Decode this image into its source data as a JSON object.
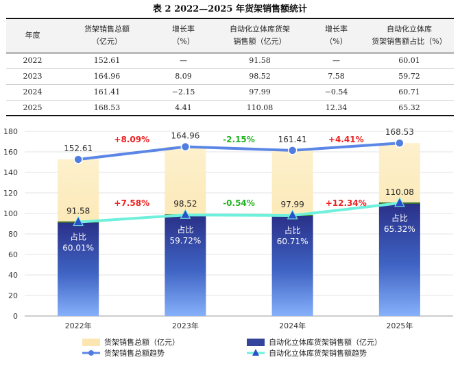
{
  "table": {
    "title": "表 2 2022—2025 年货架销售额统计",
    "headers": [
      [
        "年度"
      ],
      [
        "货架销售总额",
        "（亿元）"
      ],
      [
        "增长率",
        "（%）"
      ],
      [
        "自动化立体库货架",
        "销售额（亿元）"
      ],
      [
        "增长率",
        "（%）"
      ],
      [
        "自动化立体库",
        "货架销售额占比（%）"
      ]
    ],
    "rows": [
      [
        "2022",
        "152.61",
        "—",
        "91.58",
        "—",
        "60.01"
      ],
      [
        "2023",
        "164.96",
        "8.09",
        "98.52",
        "7.58",
        "59.72"
      ],
      [
        "2024",
        "161.41",
        "−2.15",
        "97.99",
        "−0.54",
        "60.71"
      ],
      [
        "2025",
        "168.53",
        "4.41",
        "110.08",
        "12.34",
        "65.32"
      ]
    ]
  },
  "chart_data": {
    "type": "bar",
    "categories": [
      "2022年",
      "2023年",
      "2024年",
      "2025年"
    ],
    "ylim": [
      0,
      180
    ],
    "yticks": [
      0,
      20,
      40,
      60,
      80,
      100,
      120,
      140,
      160,
      180
    ],
    "series": [
      {
        "name": "货架销售总额（亿元）",
        "kind": "bar",
        "values": [
          152.61,
          164.96,
          161.41,
          168.53
        ],
        "labels": [
          "152.61",
          "164.96",
          "161.41",
          "168.53"
        ],
        "color": "#fbe6b2"
      },
      {
        "name": "自动化立体库货架销售额（亿元）",
        "kind": "bar",
        "values": [
          91.58,
          98.52,
          97.99,
          110.08
        ],
        "labels": [
          "91.58",
          "98.52",
          "97.99",
          "110.08"
        ],
        "color": "#33449a"
      },
      {
        "name": "货架销售总额趋势",
        "kind": "line",
        "values": [
          152.61,
          164.96,
          161.41,
          168.53
        ],
        "color": "#5b86e5"
      },
      {
        "name": "自动化立体库货架销售额趋势",
        "kind": "line",
        "values": [
          91.58,
          98.52,
          97.99,
          110.08
        ],
        "color": "#6ff0dc"
      }
    ],
    "share_labels": [
      {
        "title": "占比",
        "value": "60.01%"
      },
      {
        "title": "占比",
        "value": "59.72%"
      },
      {
        "title": "占比",
        "value": "60.71%"
      },
      {
        "title": "占比",
        "value": "65.32%"
      }
    ],
    "growth_total": [
      {
        "text": "+8.09%",
        "color": "#ee2222"
      },
      {
        "text": "-2.15%",
        "color": "#22b322"
      },
      {
        "text": "+4.41%",
        "color": "#ee2222"
      }
    ],
    "growth_auto": [
      {
        "text": "+7.58%",
        "color": "#ee2222"
      },
      {
        "text": "-0.54%",
        "color": "#22b322"
      },
      {
        "text": "+12.34%",
        "color": "#ee2222"
      }
    ],
    "legend": {
      "position": "bottom",
      "items": [
        {
          "label": "货架销售总额（亿元）",
          "marker": "bar-light"
        },
        {
          "label": "自动化立体库货架销售额（亿元）",
          "marker": "bar-dark"
        },
        {
          "label": "货架销售总额趋势",
          "marker": "line-circle"
        },
        {
          "label": "自动化立体库货架销售额趋势",
          "marker": "line-triangle"
        }
      ]
    }
  }
}
